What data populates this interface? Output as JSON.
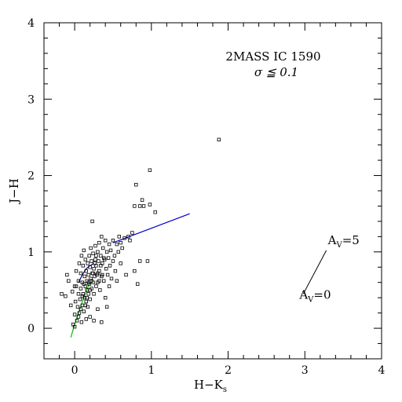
{
  "chart_data": {
    "type": "scatter",
    "title": "2MASS IC 1590",
    "subtitle": "σ ≦ 0.1",
    "xlabel": "H−K",
    "xlabel_sub": "s",
    "ylabel": "J−H",
    "xlim": [
      -0.4,
      4.0
    ],
    "ylim": [
      -0.4,
      4.0
    ],
    "grid": false,
    "x_major_ticks": [
      0,
      1,
      2,
      3,
      4
    ],
    "y_major_ticks": [
      0,
      1,
      2,
      3,
      4
    ],
    "x_tick_labels": [
      "0",
      "1",
      "2",
      "3",
      "4"
    ],
    "y_tick_labels": [
      "0",
      "1",
      "2",
      "3",
      "4"
    ],
    "minor_tick_step": 0.2,
    "colors": {
      "axes": "#000000",
      "points": "#000000",
      "ctts_locus": "#0000cc",
      "dwarf_locus": "#00bb00",
      "giant_locus": "#000080",
      "reddening_vector": "#000000"
    },
    "series": [
      {
        "type": "scatter",
        "marker": "open-square",
        "points": [
          [
            -0.17,
            0.45
          ],
          [
            -0.12,
            0.42
          ],
          [
            -0.1,
            0.7
          ],
          [
            -0.08,
            0.62
          ],
          [
            -0.05,
            0.3
          ],
          [
            -0.03,
            0.48
          ],
          [
            -0.02,
            0.05
          ],
          [
            0.0,
            0.02
          ],
          [
            0.0,
            0.18
          ],
          [
            0.01,
            0.35
          ],
          [
            0.02,
            0.55
          ],
          [
            0.02,
            0.75
          ],
          [
            0.03,
            0.1
          ],
          [
            0.04,
            0.28
          ],
          [
            0.05,
            0.45
          ],
          [
            0.05,
            0.62
          ],
          [
            0.06,
            0.85
          ],
          [
            0.06,
            0.2
          ],
          [
            0.07,
            0.38
          ],
          [
            0.08,
            0.52
          ],
          [
            0.08,
            0.72
          ],
          [
            0.09,
            0.95
          ],
          [
            0.09,
            0.08
          ],
          [
            0.1,
            0.3
          ],
          [
            0.1,
            0.6
          ],
          [
            0.11,
            0.45
          ],
          [
            0.11,
            0.82
          ],
          [
            0.12,
            1.02
          ],
          [
            0.12,
            0.22
          ],
          [
            0.13,
            0.4
          ],
          [
            0.13,
            0.68
          ],
          [
            0.14,
            0.55
          ],
          [
            0.14,
            0.9
          ],
          [
            0.15,
            0.35
          ],
          [
            0.15,
            0.75
          ],
          [
            0.16,
            0.5
          ],
          [
            0.16,
            0.62
          ],
          [
            0.17,
            0.85
          ],
          [
            0.17,
            0.28
          ],
          [
            0.18,
            0.7
          ],
          [
            0.18,
            0.45
          ],
          [
            0.19,
            0.95
          ],
          [
            0.19,
            0.58
          ],
          [
            0.2,
            0.8
          ],
          [
            0.2,
            0.38
          ],
          [
            0.21,
            1.05
          ],
          [
            0.21,
            0.65
          ],
          [
            0.22,
            0.52
          ],
          [
            0.22,
            0.88
          ],
          [
            0.23,
            0.72
          ],
          [
            0.23,
            1.4
          ],
          [
            0.24,
            0.6
          ],
          [
            0.24,
            0.98
          ],
          [
            0.25,
            0.78
          ],
          [
            0.25,
            0.45
          ],
          [
            0.26,
            0.68
          ],
          [
            0.27,
            0.9
          ],
          [
            0.27,
            1.08
          ],
          [
            0.28,
            0.55
          ],
          [
            0.28,
            0.82
          ],
          [
            0.29,
            0.7
          ],
          [
            0.3,
            1.0
          ],
          [
            0.3,
            0.6
          ],
          [
            0.31,
            0.88
          ],
          [
            0.32,
            1.12
          ],
          [
            0.32,
            0.75
          ],
          [
            0.33,
            0.5
          ],
          [
            0.34,
            0.95
          ],
          [
            0.35,
            1.2
          ],
          [
            0.35,
            0.68
          ],
          [
            0.36,
            0.85
          ],
          [
            0.37,
            1.05
          ],
          [
            0.38,
            0.62
          ],
          [
            0.39,
            0.9
          ],
          [
            0.4,
            1.15
          ],
          [
            0.41,
            0.78
          ],
          [
            0.42,
            1.0
          ],
          [
            0.43,
            0.7
          ],
          [
            0.44,
            0.92
          ],
          [
            0.45,
            1.1
          ],
          [
            0.46,
            0.82
          ],
          [
            0.47,
            1.02
          ],
          [
            0.48,
            0.65
          ],
          [
            0.5,
            0.88
          ],
          [
            0.5,
            1.15
          ],
          [
            0.52,
            0.95
          ],
          [
            0.53,
            0.75
          ],
          [
            0.55,
            1.1
          ],
          [
            0.55,
            0.62
          ],
          [
            0.57,
            1.0
          ],
          [
            0.58,
            1.2
          ],
          [
            0.6,
            0.85
          ],
          [
            0.6,
            1.12
          ],
          [
            0.62,
            1.05
          ],
          [
            0.65,
            1.18
          ],
          [
            0.67,
            0.7
          ],
          [
            0.7,
            1.2
          ],
          [
            0.72,
            1.15
          ],
          [
            0.75,
            1.25
          ],
          [
            0.78,
            1.6
          ],
          [
            0.78,
            0.75
          ],
          [
            0.8,
            1.88
          ],
          [
            0.82,
            0.58
          ],
          [
            0.85,
            1.6
          ],
          [
            0.85,
            0.88
          ],
          [
            0.88,
            1.68
          ],
          [
            0.9,
            1.6
          ],
          [
            0.95,
            0.88
          ],
          [
            0.98,
            1.62
          ],
          [
            0.98,
            2.07
          ],
          [
            1.05,
            1.52
          ],
          [
            1.88,
            2.47
          ],
          [
            0.0,
            0.55
          ],
          [
            0.05,
            0.15
          ],
          [
            0.08,
            0.25
          ],
          [
            0.1,
            0.42
          ],
          [
            0.12,
            0.58
          ],
          [
            0.14,
            0.3
          ],
          [
            0.16,
            0.4
          ],
          [
            0.18,
            0.6
          ],
          [
            0.2,
            0.5
          ],
          [
            0.22,
            0.62
          ],
          [
            0.24,
            0.72
          ],
          [
            0.26,
            0.85
          ],
          [
            0.28,
            0.95
          ],
          [
            0.3,
            0.72
          ],
          [
            0.32,
            0.62
          ],
          [
            0.34,
            0.82
          ],
          [
            0.36,
            0.7
          ],
          [
            0.38,
            0.92
          ],
          [
            0.15,
            0.12
          ],
          [
            0.25,
            0.1
          ],
          [
            0.35,
            0.08
          ],
          [
            0.2,
            0.15
          ],
          [
            0.3,
            0.25
          ],
          [
            0.4,
            0.4
          ],
          [
            0.45,
            0.55
          ],
          [
            0.42,
            0.28
          ]
        ]
      }
    ],
    "lines": [
      {
        "name": "",
        "color": "#0000cc",
        "x": [
          0.5,
          1.5
        ],
        "y": [
          1.12,
          1.5
        ]
      },
      {
        "name": "",
        "color": "#00bb00",
        "x": [
          -0.05,
          0.0,
          0.05,
          0.1,
          0.15,
          0.2
        ],
        "y": [
          -0.12,
          0.05,
          0.2,
          0.35,
          0.48,
          0.6
        ]
      },
      {
        "name": "",
        "color": "#000080",
        "x": [
          0.05,
          0.1,
          0.15,
          0.2,
          0.25
        ],
        "y": [
          0.6,
          0.7,
          0.78,
          0.82,
          0.85
        ]
      }
    ],
    "reddening_vector": {
      "x": [
        2.98,
        3.28
      ],
      "y": [
        0.45,
        1.02
      ],
      "label_start": "A",
      "label_end": "A",
      "label_sub": "V",
      "label_start_value": "=0",
      "label_end_value": "=5"
    }
  }
}
